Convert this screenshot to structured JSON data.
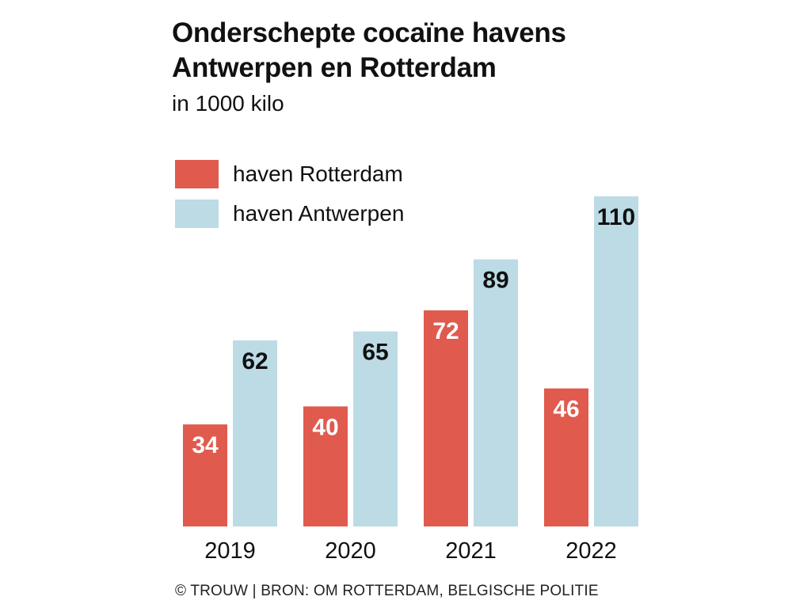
{
  "title_line1": "Onderschepte cocaïne havens",
  "title_line2": "Antwerpen en Rotterdam",
  "subtitle": "in 1000 kilo",
  "source": "© TROUW | BRON: OM ROTTERDAM, BELGISCHE POLITIE",
  "legend": [
    {
      "label": "haven Rotterdam",
      "color": "#e05a4e"
    },
    {
      "label": "haven Antwerpen",
      "color": "#bcdbe5"
    }
  ],
  "chart_data": {
    "type": "bar",
    "title": "Onderschepte cocaïne havens Antwerpen en Rotterdam",
    "subtitle": "in 1000 kilo",
    "categories": [
      "2019",
      "2020",
      "2021",
      "2022"
    ],
    "series": [
      {
        "name": "haven Rotterdam",
        "values": [
          34,
          40,
          72,
          46
        ],
        "color": "#e05a4e",
        "label_color": "#ffffff"
      },
      {
        "name": "haven Antwerpen",
        "values": [
          62,
          65,
          89,
          110
        ],
        "color": "#bcdbe5",
        "label_color": "#111111"
      }
    ],
    "ylim": [
      0,
      110
    ],
    "grid": false,
    "legend_position": "top-left",
    "data_labels": true
  }
}
